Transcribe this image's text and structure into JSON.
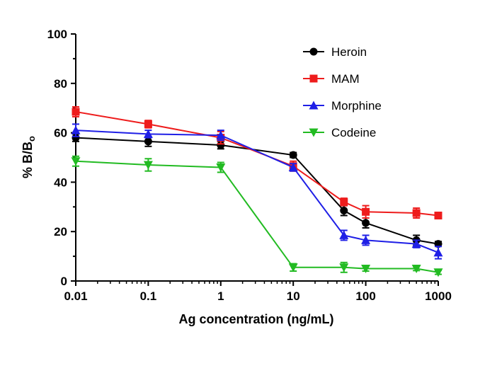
{
  "chart_data": {
    "type": "line",
    "title": "",
    "xlabel": "Ag concentration (ng/mL)",
    "ylabel": "% B/B",
    "ylabel_sub": "o",
    "xscale": "log",
    "xlim": [
      0.01,
      1000
    ],
    "ylim": [
      0,
      100
    ],
    "x_ticks": [
      0.01,
      0.1,
      1,
      10,
      100,
      1000
    ],
    "x_tick_labels": [
      "0.01",
      "0.1",
      "1",
      "10",
      "100",
      "1000"
    ],
    "y_ticks": [
      0,
      20,
      40,
      60,
      80,
      100
    ],
    "y_tick_labels": [
      "0",
      "20",
      "40",
      "60",
      "80",
      "100"
    ],
    "grid": false,
    "legend_position": "top-right",
    "x": [
      0.01,
      0.1,
      1,
      10,
      50,
      100,
      500,
      1000
    ],
    "series": [
      {
        "name": "Heroin",
        "color": "#000000",
        "marker": "circle",
        "values": [
          58,
          56.5,
          55,
          51,
          28.5,
          23.5,
          16.5,
          15
        ],
        "errors": [
          1.5,
          2,
          1.5,
          1,
          2,
          2,
          2,
          1
        ]
      },
      {
        "name": "MAM",
        "color": "#ee1c1c",
        "marker": "square",
        "values": [
          68.5,
          63.5,
          58,
          46.5,
          32,
          28,
          27.5,
          26.5
        ],
        "errors": [
          2,
          1.5,
          2.5,
          2,
          1.5,
          2.5,
          2,
          1
        ]
      },
      {
        "name": "Morphine",
        "color": "#1f1fe6",
        "marker": "triangle-up",
        "values": [
          61,
          59.5,
          59,
          46,
          18.5,
          16.5,
          15,
          11.5
        ],
        "errors": [
          2.5,
          1.5,
          2,
          1.5,
          2,
          2,
          1.5,
          2.5
        ]
      },
      {
        "name": "Codeine",
        "color": "#22bb22",
        "marker": "triangle-down",
        "values": [
          48.5,
          47,
          46,
          5.5,
          5.5,
          5,
          5,
          3.5
        ],
        "errors": [
          2,
          2.5,
          2,
          1.5,
          2,
          1,
          0.8,
          0.8
        ]
      }
    ]
  }
}
